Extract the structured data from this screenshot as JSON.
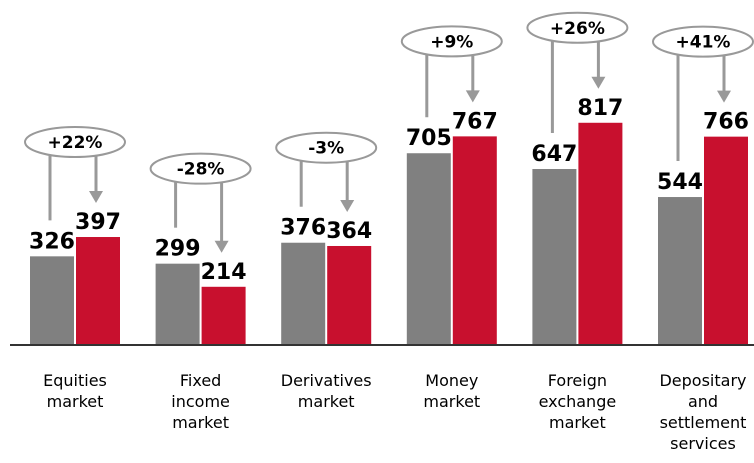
{
  "chart_data": {
    "type": "bar",
    "categories": [
      "Equities market",
      "Fixed income market",
      "Derivatives market",
      "Money market",
      "Foreign exchange market",
      "Depositary and settlement services"
    ],
    "series": [
      {
        "color": "#808080",
        "values": [
          326,
          299,
          376,
          705,
          647,
          544
        ]
      },
      {
        "color": "#c8102e",
        "values": [
          397,
          214,
          364,
          767,
          817,
          766
        ]
      }
    ],
    "annotations": [
      "+22%",
      "-28%",
      "-3%",
      "+9%",
      "+26%",
      "+41%"
    ],
    "ylim": [
      0,
      1000
    ]
  }
}
